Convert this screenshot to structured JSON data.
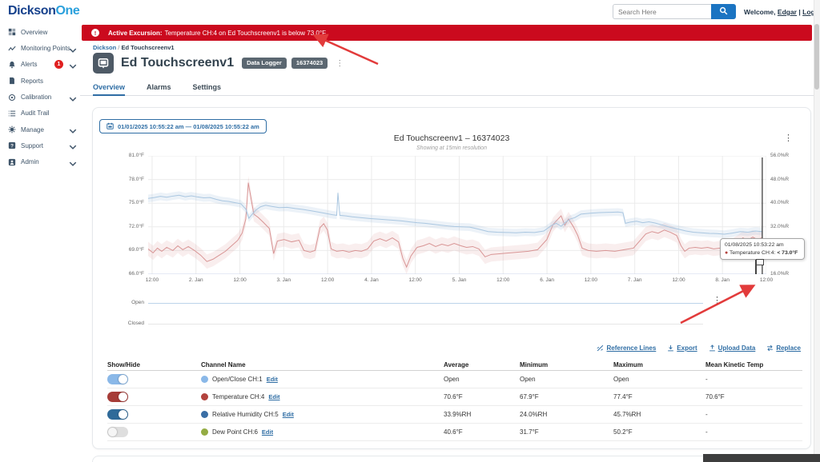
{
  "header": {
    "logo_part1": "Dickson",
    "logo_part2": "One",
    "search_placeholder": "Search Here",
    "welcome_prefix": "Welcome,",
    "user": "Edgar",
    "separator": "|",
    "logout": "Logout"
  },
  "alert": {
    "title": "Active Excursion:",
    "message": "Temperature CH:4 on Ed Touchscreenv1 is below 73.0°F."
  },
  "sidebar": {
    "items": [
      {
        "icon": "grid",
        "label": "Overview"
      },
      {
        "icon": "chart-line",
        "label": "Monitoring Points",
        "chevron": true
      },
      {
        "icon": "bell",
        "label": "Alerts",
        "badge": "1",
        "chevron": true
      },
      {
        "icon": "document",
        "label": "Reports"
      },
      {
        "icon": "target",
        "label": "Calibration",
        "chevron": true
      },
      {
        "icon": "list",
        "label": "Audit Trail"
      },
      {
        "icon": "gear",
        "label": "Manage",
        "chevron": true
      },
      {
        "icon": "question",
        "label": "Support",
        "chevron": true
      },
      {
        "icon": "person",
        "label": "Admin",
        "chevron": true
      }
    ]
  },
  "breadcrumb": {
    "root": "Dickson",
    "separator": "/",
    "current": "Ed Touchscreenv1"
  },
  "device": {
    "title": "Ed Touchscreenv1",
    "type_badge": "Data Logger",
    "serial_badge": "16374023"
  },
  "tabs": [
    {
      "label": "Overview",
      "active": true
    },
    {
      "label": "Alarms",
      "active": false
    },
    {
      "label": "Settings",
      "active": false
    }
  ],
  "card": {
    "date_range": "01/01/2025 10:55:22 am — 01/08/2025 10:55:22 am"
  },
  "tooltip": {
    "timestamp": "01/08/2025 10:53:22 am",
    "series_label": "Temperature CH:4:",
    "value": "< 73.0°F"
  },
  "chart_data": {
    "type": "line",
    "title": "Ed Touchscreenv1 – 16374023",
    "subtitle": "Showing at 15min resolution",
    "grid": true,
    "y_left": {
      "unit": "°F",
      "min": 66,
      "max": 81,
      "labels": [
        "81.0°F",
        "78.0°F",
        "75.0°F",
        "72.0°F",
        "69.0°F",
        "66.0°F"
      ]
    },
    "y_right": {
      "unit": "%RH",
      "min": 16,
      "max": 56,
      "labels": [
        "56.0%R",
        "48.0%R",
        "40.0%R",
        "32.0%R",
        "24.0%R",
        "16.0%R"
      ]
    },
    "x_ticks": [
      {
        "label": "12:00",
        "t": 0.0064
      },
      {
        "label": "2. Jan",
        "t": 0.0774
      },
      {
        "label": "12:00",
        "t": 0.1484
      },
      {
        "label": "3. Jan",
        "t": 0.2193
      },
      {
        "label": "12:00",
        "t": 0.2903
      },
      {
        "label": "4. Jan",
        "t": 0.3613
      },
      {
        "label": "12:00",
        "t": 0.4322
      },
      {
        "label": "5. Jan",
        "t": 0.5032
      },
      {
        "label": "12:00",
        "t": 0.5742
      },
      {
        "label": "6. Jan",
        "t": 0.6452
      },
      {
        "label": "12:00",
        "t": 0.7161
      },
      {
        "label": "7. Jan",
        "t": 0.7871
      },
      {
        "label": "12:00",
        "t": 0.8581
      },
      {
        "label": "8. Jan",
        "t": 0.929
      },
      {
        "label": "12:00",
        "t": 1.0
      }
    ],
    "excursion_marker": {
      "t": 0.9934
    },
    "series": [
      {
        "name": "Temperature CH:4",
        "axis": "left",
        "color": "#d89494",
        "band": 0.9,
        "band_fill": "rgba(216,148,148,0.16)",
        "points": [
          [
            0,
            69.2
          ],
          [
            0.008,
            68.7
          ],
          [
            0.015,
            69.3
          ],
          [
            0.022,
            68.9
          ],
          [
            0.03,
            69.4
          ],
          [
            0.04,
            69
          ],
          [
            0.048,
            69.6
          ],
          [
            0.056,
            69.1
          ],
          [
            0.065,
            69.5
          ],
          [
            0.075,
            69
          ],
          [
            0.085,
            68.4
          ],
          [
            0.095,
            67.6
          ],
          [
            0.105,
            67.9
          ],
          [
            0.115,
            68.4
          ],
          [
            0.125,
            68.9
          ],
          [
            0.135,
            69.6
          ],
          [
            0.145,
            70.3
          ],
          [
            0.152,
            71.2
          ],
          [
            0.158,
            73
          ],
          [
            0.162,
            77.6
          ],
          [
            0.166,
            75.8
          ],
          [
            0.171,
            73.6
          ],
          [
            0.178,
            73.2
          ],
          [
            0.186,
            72.6
          ],
          [
            0.196,
            71.8
          ],
          [
            0.203,
            68.6
          ],
          [
            0.209,
            70.2
          ],
          [
            0.22,
            70.4
          ],
          [
            0.232,
            70.1
          ],
          [
            0.244,
            70.3
          ],
          [
            0.252,
            69
          ],
          [
            0.262,
            68.8
          ],
          [
            0.27,
            69
          ],
          [
            0.278,
            71.9
          ],
          [
            0.284,
            72.4
          ],
          [
            0.29,
            71.6
          ],
          [
            0.296,
            69.2
          ],
          [
            0.305,
            68.9
          ],
          [
            0.315,
            69
          ],
          [
            0.325,
            68.8
          ],
          [
            0.335,
            69
          ],
          [
            0.345,
            68.9
          ],
          [
            0.355,
            69.2
          ],
          [
            0.365,
            70.2
          ],
          [
            0.375,
            70.5
          ],
          [
            0.385,
            70.2
          ],
          [
            0.395,
            70.6
          ],
          [
            0.405,
            70.1
          ],
          [
            0.412,
            68
          ],
          [
            0.418,
            66.9
          ],
          [
            0.425,
            68.3
          ],
          [
            0.435,
            69.4
          ],
          [
            0.445,
            69.6
          ],
          [
            0.455,
            69.9
          ],
          [
            0.465,
            69.5
          ],
          [
            0.475,
            69.8
          ],
          [
            0.485,
            69.6
          ],
          [
            0.495,
            69.9
          ],
          [
            0.506,
            69.6
          ],
          [
            0.515,
            69.4
          ],
          [
            0.525,
            69.5
          ],
          [
            0.535,
            69.2
          ],
          [
            0.545,
            68.2
          ],
          [
            0.555,
            68.5
          ],
          [
            0.57,
            68.6
          ],
          [
            0.585,
            68.7
          ],
          [
            0.6,
            68.8
          ],
          [
            0.615,
            68.9
          ],
          [
            0.63,
            69.1
          ],
          [
            0.645,
            70.4
          ],
          [
            0.655,
            72.3
          ],
          [
            0.662,
            72.9
          ],
          [
            0.668,
            73.4
          ],
          [
            0.674,
            72.2
          ],
          [
            0.68,
            73
          ],
          [
            0.688,
            72
          ],
          [
            0.695,
            70.9
          ],
          [
            0.702,
            69.3
          ],
          [
            0.712,
            69
          ],
          [
            0.725,
            68.9
          ],
          [
            0.74,
            69
          ],
          [
            0.755,
            68.9
          ],
          [
            0.77,
            69.1
          ],
          [
            0.785,
            69.3
          ],
          [
            0.795,
            70.2
          ],
          [
            0.805,
            71.1
          ],
          [
            0.815,
            71.4
          ],
          [
            0.825,
            71.2
          ],
          [
            0.835,
            71.6
          ],
          [
            0.845,
            71.3
          ],
          [
            0.855,
            70.9
          ],
          [
            0.862,
            69.6
          ],
          [
            0.868,
            68.9
          ],
          [
            0.875,
            69.3
          ],
          [
            0.885,
            69.4
          ],
          [
            0.895,
            69.3
          ],
          [
            0.905,
            69.4
          ],
          [
            0.915,
            69.2
          ],
          [
            0.925,
            69.3
          ],
          [
            0.935,
            68.8
          ],
          [
            0.945,
            69.6
          ],
          [
            0.955,
            70.1
          ],
          [
            0.962,
            70.6
          ],
          [
            0.97,
            70.3
          ],
          [
            0.978,
            70.7
          ],
          [
            0.985,
            70.4
          ],
          [
            0.993,
            70.6
          ]
        ]
      },
      {
        "name": "Relative Humidity CH:5",
        "axis": "right",
        "color": "#a9c6e0",
        "band": 1.3,
        "band_fill": "rgba(169,198,224,0.22)",
        "points": [
          [
            0,
            41.6
          ],
          [
            0.01,
            41.9
          ],
          [
            0.02,
            42.3
          ],
          [
            0.03,
            42
          ],
          [
            0.04,
            42.4
          ],
          [
            0.05,
            42.7
          ],
          [
            0.06,
            42.2
          ],
          [
            0.07,
            42.5
          ],
          [
            0.08,
            42.1
          ],
          [
            0.09,
            41.8
          ],
          [
            0.1,
            41.9
          ],
          [
            0.11,
            41.3
          ],
          [
            0.12,
            40.8
          ],
          [
            0.13,
            40.6
          ],
          [
            0.14,
            40.2
          ],
          [
            0.15,
            39.8
          ],
          [
            0.158,
            38
          ],
          [
            0.163,
            34.9
          ],
          [
            0.168,
            36.2
          ],
          [
            0.175,
            37.8
          ],
          [
            0.182,
            38.8
          ],
          [
            0.19,
            39.3
          ],
          [
            0.2,
            38.9
          ],
          [
            0.212,
            38.5
          ],
          [
            0.225,
            38.6
          ],
          [
            0.238,
            38.2
          ],
          [
            0.25,
            37.9
          ],
          [
            0.262,
            37.5
          ],
          [
            0.275,
            37
          ],
          [
            0.288,
            36.5
          ],
          [
            0.298,
            36.1
          ],
          [
            0.305,
            35.9
          ],
          [
            0.307,
            43.5
          ],
          [
            0.31,
            35.9
          ],
          [
            0.32,
            35.7
          ],
          [
            0.33,
            35.4
          ],
          [
            0.34,
            35.2
          ],
          [
            0.35,
            35
          ],
          [
            0.36,
            34.8
          ],
          [
            0.372,
            34.6
          ],
          [
            0.385,
            34.4
          ],
          [
            0.398,
            34.2
          ],
          [
            0.41,
            34
          ],
          [
            0.422,
            33.7
          ],
          [
            0.435,
            33.4
          ],
          [
            0.448,
            33.2
          ],
          [
            0.46,
            32.9
          ],
          [
            0.472,
            32.6
          ],
          [
            0.485,
            32.3
          ],
          [
            0.495,
            32.1
          ],
          [
            0.506,
            32
          ],
          [
            0.52,
            31.9
          ],
          [
            0.535,
            31.2
          ],
          [
            0.55,
            30.4
          ],
          [
            0.565,
            30.2
          ],
          [
            0.58,
            30.1
          ],
          [
            0.595,
            30
          ],
          [
            0.61,
            30.2
          ],
          [
            0.625,
            30.1
          ],
          [
            0.64,
            30.6
          ],
          [
            0.652,
            32.4
          ],
          [
            0.66,
            33.2
          ],
          [
            0.668,
            32.2
          ],
          [
            0.675,
            33.5
          ],
          [
            0.682,
            34.6
          ],
          [
            0.69,
            35.1
          ],
          [
            0.7,
            36.3
          ],
          [
            0.715,
            36.6
          ],
          [
            0.73,
            36.8
          ],
          [
            0.745,
            36.9
          ],
          [
            0.76,
            37
          ],
          [
            0.768,
            36.8
          ],
          [
            0.772,
            33.2
          ],
          [
            0.78,
            33.6
          ],
          [
            0.79,
            33.9
          ],
          [
            0.8,
            33.4
          ],
          [
            0.81,
            33.7
          ],
          [
            0.82,
            33.3
          ],
          [
            0.832,
            32.6
          ],
          [
            0.845,
            31.8
          ],
          [
            0.858,
            31.2
          ],
          [
            0.87,
            30.6
          ],
          [
            0.882,
            30.2
          ],
          [
            0.895,
            30
          ],
          [
            0.908,
            29.8
          ],
          [
            0.92,
            29.7
          ],
          [
            0.932,
            29.5
          ],
          [
            0.945,
            29.9
          ],
          [
            0.958,
            30.4
          ],
          [
            0.97,
            30.2
          ],
          [
            0.982,
            30.6
          ],
          [
            0.993,
            30.4
          ]
        ]
      }
    ],
    "mini": {
      "labels": [
        "Open",
        "Closed"
      ]
    }
  },
  "toolbar": {
    "links": [
      {
        "icon": "reference-lines",
        "label": "Reference Lines"
      },
      {
        "icon": "export",
        "label": "Export"
      },
      {
        "icon": "upload",
        "label": "Upload Data"
      },
      {
        "icon": "replace",
        "label": "Replace"
      }
    ]
  },
  "table": {
    "headers": [
      "Show/Hide",
      "Channel Name",
      "Average",
      "Minimum",
      "Maximum",
      "Mean Kinetic Temp"
    ],
    "rows": [
      {
        "toggle_on": true,
        "toggle_color": "#8ab8e8",
        "dot_color": "#8ab8e8",
        "name": "Open/Close CH:1",
        "edit": "Edit",
        "average": "Open",
        "minimum": "Open",
        "maximum": "Open",
        "mkt": "-"
      },
      {
        "toggle_on": true,
        "toggle_color": "#a63c38",
        "dot_color": "#b2423d",
        "name": "Temperature CH:4",
        "edit": "Edit",
        "average": "70.6°F",
        "minimum": "67.9°F",
        "maximum": "77.4°F",
        "mkt": "70.6°F"
      },
      {
        "toggle_on": true,
        "toggle_color": "#2f6a99",
        "dot_color": "#3a6ea5",
        "name": "Relative Humidity CH:5",
        "edit": "Edit",
        "average": "33.9%RH",
        "minimum": "24.0%RH",
        "maximum": "45.7%RH",
        "mkt": "-"
      },
      {
        "toggle_on": false,
        "toggle_color": "#dedede",
        "dot_color": "#94ac43",
        "name": "Dew Point CH:6",
        "edit": "Edit",
        "average": "40.6°F",
        "minimum": "31.7°F",
        "maximum": "50.2°F",
        "mkt": "-"
      }
    ]
  },
  "colors": {
    "accent": "#2e6da4",
    "banner": "#cb0a1e",
    "annotation_arrow": "#e23b3b"
  }
}
